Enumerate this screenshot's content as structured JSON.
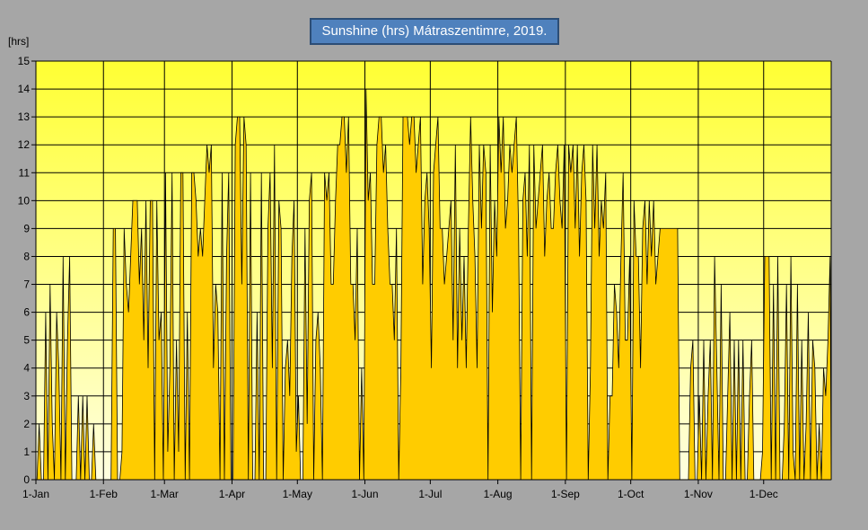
{
  "chart_data": {
    "type": "area",
    "title": "Sunshine (hrs) Mátraszentimre, 2019.",
    "ylabel": "[hrs]",
    "xlabel": "",
    "ylim": [
      0,
      15
    ],
    "yticks": [
      0,
      1,
      2,
      3,
      4,
      5,
      6,
      7,
      8,
      9,
      10,
      11,
      12,
      13,
      14,
      15
    ],
    "xtick_labels": [
      "1-Jan",
      "1-Feb",
      "1-Mar",
      "1-Apr",
      "1-May",
      "1-Jun",
      "1-Jul",
      "1-Aug",
      "1-Sep",
      "1-Oct",
      "1-Nov",
      "1-Dec"
    ],
    "xtick_days": [
      0,
      31,
      59,
      90,
      120,
      151,
      181,
      212,
      243,
      273,
      304,
      334
    ],
    "grid": true,
    "colors": {
      "fill": "#ffcc00",
      "line": "#000000",
      "bg_top": "#ffff33",
      "bg_bottom": "#ffffe0",
      "title_bg": "#4f81bd"
    },
    "values": [
      0,
      2,
      0,
      0,
      6,
      0,
      7,
      2,
      0,
      6,
      4,
      0,
      8,
      0,
      5,
      8,
      0,
      0,
      0,
      3,
      0,
      3,
      0,
      3,
      0,
      0,
      2,
      0,
      0,
      0,
      0,
      0,
      0,
      0,
      0,
      9,
      9,
      0,
      0,
      1,
      9,
      7,
      6,
      8,
      10,
      10,
      10,
      7,
      9,
      5,
      10,
      4,
      10,
      10,
      0,
      10,
      5,
      6,
      0,
      11,
      1,
      4,
      11,
      0,
      5,
      1,
      11,
      11,
      0,
      6,
      0,
      11,
      11,
      10,
      8,
      9,
      8,
      10,
      12,
      11,
      12,
      4,
      7,
      6,
      0,
      11,
      0,
      8,
      11,
      0,
      0,
      12,
      13,
      13,
      7,
      13,
      12,
      0,
      11,
      0,
      0,
      6,
      0,
      11,
      0,
      0,
      9,
      11,
      4,
      12,
      0,
      10,
      9,
      0,
      4,
      5,
      3,
      8,
      10,
      1,
      3,
      0,
      0,
      9,
      2,
      10,
      11,
      0,
      5,
      6,
      4,
      0,
      11,
      10,
      11,
      7,
      7,
      10,
      12,
      12,
      13,
      13,
      11,
      13,
      7,
      7,
      5,
      9,
      0,
      4,
      0,
      14,
      10,
      11,
      7,
      7,
      12,
      13,
      13,
      11,
      12,
      9,
      7,
      7,
      5,
      9,
      0,
      4,
      13,
      13,
      13,
      12,
      13,
      13,
      11,
      12,
      13,
      7,
      10,
      11,
      9,
      4,
      11,
      12,
      13,
      9,
      9,
      7,
      8,
      9,
      10,
      5,
      12,
      4,
      9,
      5,
      8,
      4,
      9,
      13,
      10,
      8,
      4,
      12,
      9,
      12,
      11,
      0,
      12,
      6,
      10,
      8,
      13,
      11,
      13,
      9,
      10,
      12,
      11,
      12,
      13,
      9,
      0,
      10,
      11,
      8,
      12,
      0,
      12,
      9,
      10,
      11,
      12,
      8,
      10,
      11,
      9,
      9,
      11,
      12,
      10,
      9,
      12,
      0,
      12,
      11,
      12,
      9,
      12,
      8,
      11,
      12,
      10,
      0,
      4,
      12,
      9,
      12,
      8,
      10,
      9,
      11,
      0,
      3,
      3,
      7,
      6,
      4,
      8,
      11,
      5,
      5,
      8,
      0,
      10,
      8,
      8,
      4,
      9,
      10,
      7,
      10,
      8,
      10,
      7,
      8,
      9,
      9,
      9,
      9,
      9,
      9,
      9,
      9,
      9,
      0,
      0,
      0,
      0,
      0,
      4,
      5,
      0,
      0,
      3,
      0,
      5,
      0,
      3,
      5,
      0,
      8,
      4,
      0,
      7,
      0,
      0,
      3,
      6,
      0,
      5,
      0,
      5,
      0,
      5,
      0,
      0,
      3,
      5,
      0,
      0,
      0,
      0,
      1,
      8,
      8,
      8,
      0,
      7,
      0,
      8,
      0,
      0,
      2,
      7,
      0,
      8,
      1,
      0,
      7,
      0,
      5,
      0,
      2,
      6,
      0,
      5,
      4,
      0,
      2,
      0,
      4,
      3,
      5,
      8
    ]
  }
}
